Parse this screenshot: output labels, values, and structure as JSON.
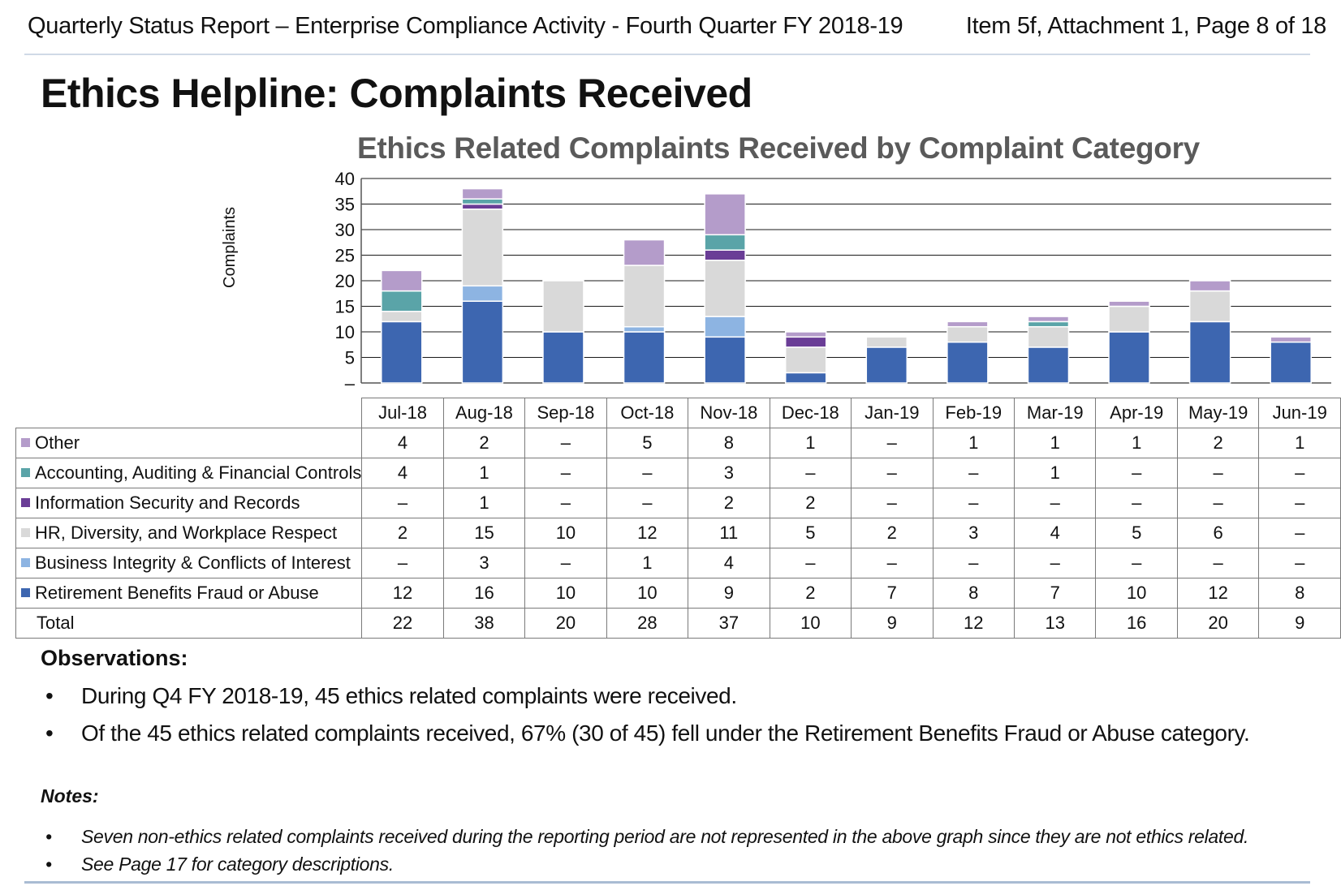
{
  "header": {
    "left": "Quarterly Status Report – Enterprise Compliance Activity - Fourth Quarter FY 2018-19",
    "right": "Item 5f, Attachment 1, Page 8 of 18"
  },
  "page_title": "Ethics Helpline: Complaints Received",
  "chart_data": {
    "type": "bar",
    "stacked": true,
    "title": "Ethics Related Complaints Received by Complaint Category",
    "ylabel": "Complaints",
    "xlabel": "",
    "ylim": [
      0,
      40
    ],
    "yticks": [
      "–",
      "5",
      "10",
      "15",
      "20",
      "25",
      "30",
      "35",
      "40"
    ],
    "categories": [
      "Jul-18",
      "Aug-18",
      "Sep-18",
      "Oct-18",
      "Nov-18",
      "Dec-18",
      "Jan-19",
      "Feb-19",
      "Mar-19",
      "Apr-19",
      "May-19",
      "Jun-19"
    ],
    "series": [
      {
        "name": "Other",
        "color": "#b49cca",
        "values": [
          4,
          2,
          0,
          5,
          8,
          1,
          0,
          1,
          1,
          1,
          2,
          1
        ],
        "labels": [
          "4",
          "2",
          "–",
          "5",
          "8",
          "1",
          "–",
          "1",
          "1",
          "1",
          "2",
          "1"
        ]
      },
      {
        "name": "Accounting, Auditing & Financial Controls",
        "color": "#5aa4a8",
        "values": [
          4,
          1,
          0,
          0,
          3,
          0,
          0,
          0,
          1,
          0,
          0,
          0
        ],
        "labels": [
          "4",
          "1",
          "–",
          "–",
          "3",
          "–",
          "–",
          "–",
          "1",
          "–",
          "–",
          "–"
        ]
      },
      {
        "name": "Information Security and Records",
        "color": "#6a3d96",
        "values": [
          0,
          1,
          0,
          0,
          2,
          2,
          0,
          0,
          0,
          0,
          0,
          0
        ],
        "labels": [
          "–",
          "1",
          "–",
          "–",
          "2",
          "2",
          "–",
          "–",
          "–",
          "–",
          "–",
          "–"
        ]
      },
      {
        "name": "HR, Diversity, and Workplace Respect",
        "color": "#d9d9d9",
        "values": [
          2,
          15,
          10,
          12,
          11,
          5,
          2,
          3,
          4,
          5,
          6,
          0
        ],
        "labels": [
          "2",
          "15",
          "10",
          "12",
          "11",
          "5",
          "2",
          "3",
          "4",
          "5",
          "6",
          "–"
        ]
      },
      {
        "name": "Business Integrity & Conflicts of Interest",
        "color": "#8db4e2",
        "values": [
          0,
          3,
          0,
          1,
          4,
          0,
          0,
          0,
          0,
          0,
          0,
          0
        ],
        "labels": [
          "–",
          "3",
          "–",
          "1",
          "4",
          "–",
          "–",
          "–",
          "–",
          "–",
          "–",
          "–"
        ]
      },
      {
        "name": "Retirement Benefits Fraud or Abuse",
        "color": "#3d66b0",
        "values": [
          12,
          16,
          10,
          10,
          9,
          2,
          7,
          8,
          7,
          10,
          12,
          8
        ],
        "labels": [
          "12",
          "16",
          "10",
          "10",
          "9",
          "2",
          "7",
          "8",
          "7",
          "10",
          "12",
          "8"
        ]
      }
    ],
    "total": {
      "name": "Total",
      "values": [
        22,
        38,
        20,
        28,
        37,
        10,
        9,
        12,
        13,
        16,
        20,
        9
      ]
    },
    "grid": true,
    "legend": "table"
  },
  "observations": {
    "title": "Observations:",
    "items": [
      "During Q4 FY 2018-19, 45 ethics related complaints were received.",
      "Of the 45 ethics related complaints received, 67% (30 of 45) fell under the Retirement Benefits Fraud or Abuse category."
    ]
  },
  "notes": {
    "title": "Notes:",
    "items": [
      "Seven non-ethics related complaints received during the reporting period are not represented in the above graph since they are not ethics related.",
      "See Page 17 for category descriptions."
    ]
  },
  "bullet": "•"
}
